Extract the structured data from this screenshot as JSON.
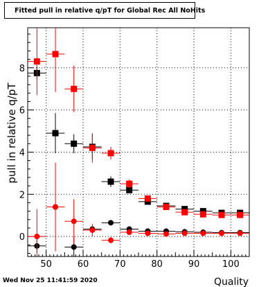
{
  "chart_data": {
    "type": "scatter",
    "title": "Fitted pull in relative q/pT for Global Rec All NoHits",
    "xlabel": "Quality",
    "ylabel": "pull in relative q/pT",
    "timestamp": "Wed Nov 25 11:41:59 2020",
    "xlim": [
      45,
      105
    ],
    "ylim": [
      -0.95,
      9.9
    ],
    "xticks": [
      50,
      60,
      70,
      80,
      90,
      100
    ],
    "yticks": [
      0,
      2,
      4,
      6,
      8
    ],
    "grid": true,
    "series": [
      {
        "marker": "square",
        "color": "#000000",
        "x": [
          47.5,
          52.5,
          57.5,
          62.5,
          67.5,
          72.5,
          77.5,
          82.5,
          87.5,
          92.5,
          97.5,
          102.5
        ],
        "y": [
          7.75,
          4.9,
          4.4,
          4.25,
          2.6,
          2.2,
          1.65,
          1.45,
          1.3,
          1.2,
          1.12,
          1.12
        ],
        "err": [
          0.3,
          0.95,
          0.45,
          0.6,
          0.25,
          0.15,
          0.1,
          0.08,
          0.06,
          0.05,
          0.05,
          0.05
        ]
      },
      {
        "marker": "square",
        "color": "#ff0000",
        "x": [
          47.5,
          52.5,
          57.5,
          62.5,
          67.5,
          72.5,
          77.5,
          82.5,
          87.5,
          92.5,
          97.5,
          102.5
        ],
        "y": [
          8.3,
          8.65,
          7.0,
          4.2,
          3.95,
          2.5,
          1.8,
          1.4,
          1.15,
          1.05,
          1.02,
          1.02
        ],
        "err": [
          1.6,
          1.8,
          1.1,
          0.7,
          0.3,
          0.2,
          0.1,
          0.08,
          0.06,
          0.05,
          0.05,
          0.05
        ]
      },
      {
        "marker": "circle",
        "color": "#000000",
        "x": [
          47.5,
          52.5,
          57.5,
          62.5,
          67.5,
          72.5,
          77.5,
          82.5,
          87.5,
          92.5,
          97.5,
          102.5
        ],
        "y": [
          -0.45,
          1.4,
          -0.5,
          0.35,
          0.65,
          0.35,
          0.25,
          0.25,
          0.22,
          0.2,
          0.18,
          0.18
        ],
        "err": [
          0.3,
          0.8,
          0.5,
          0.1,
          0.08,
          0.05,
          0.04,
          0.04,
          0.03,
          0.03,
          0.03,
          0.03
        ]
      },
      {
        "marker": "circle",
        "color": "#ff0000",
        "x": [
          47.5,
          52.5,
          57.5,
          62.5,
          67.5,
          72.5,
          77.5,
          82.5,
          87.5,
          92.5,
          97.5,
          102.5
        ],
        "y": [
          0.0,
          1.4,
          0.72,
          0.3,
          -0.18,
          0.2,
          0.15,
          0.12,
          0.15,
          0.15,
          0.15,
          0.15
        ],
        "err": [
          1.3,
          2.1,
          1.05,
          0.3,
          0.15,
          0.06,
          0.04,
          0.04,
          0.04,
          0.03,
          0.03,
          0.03
        ]
      }
    ]
  }
}
